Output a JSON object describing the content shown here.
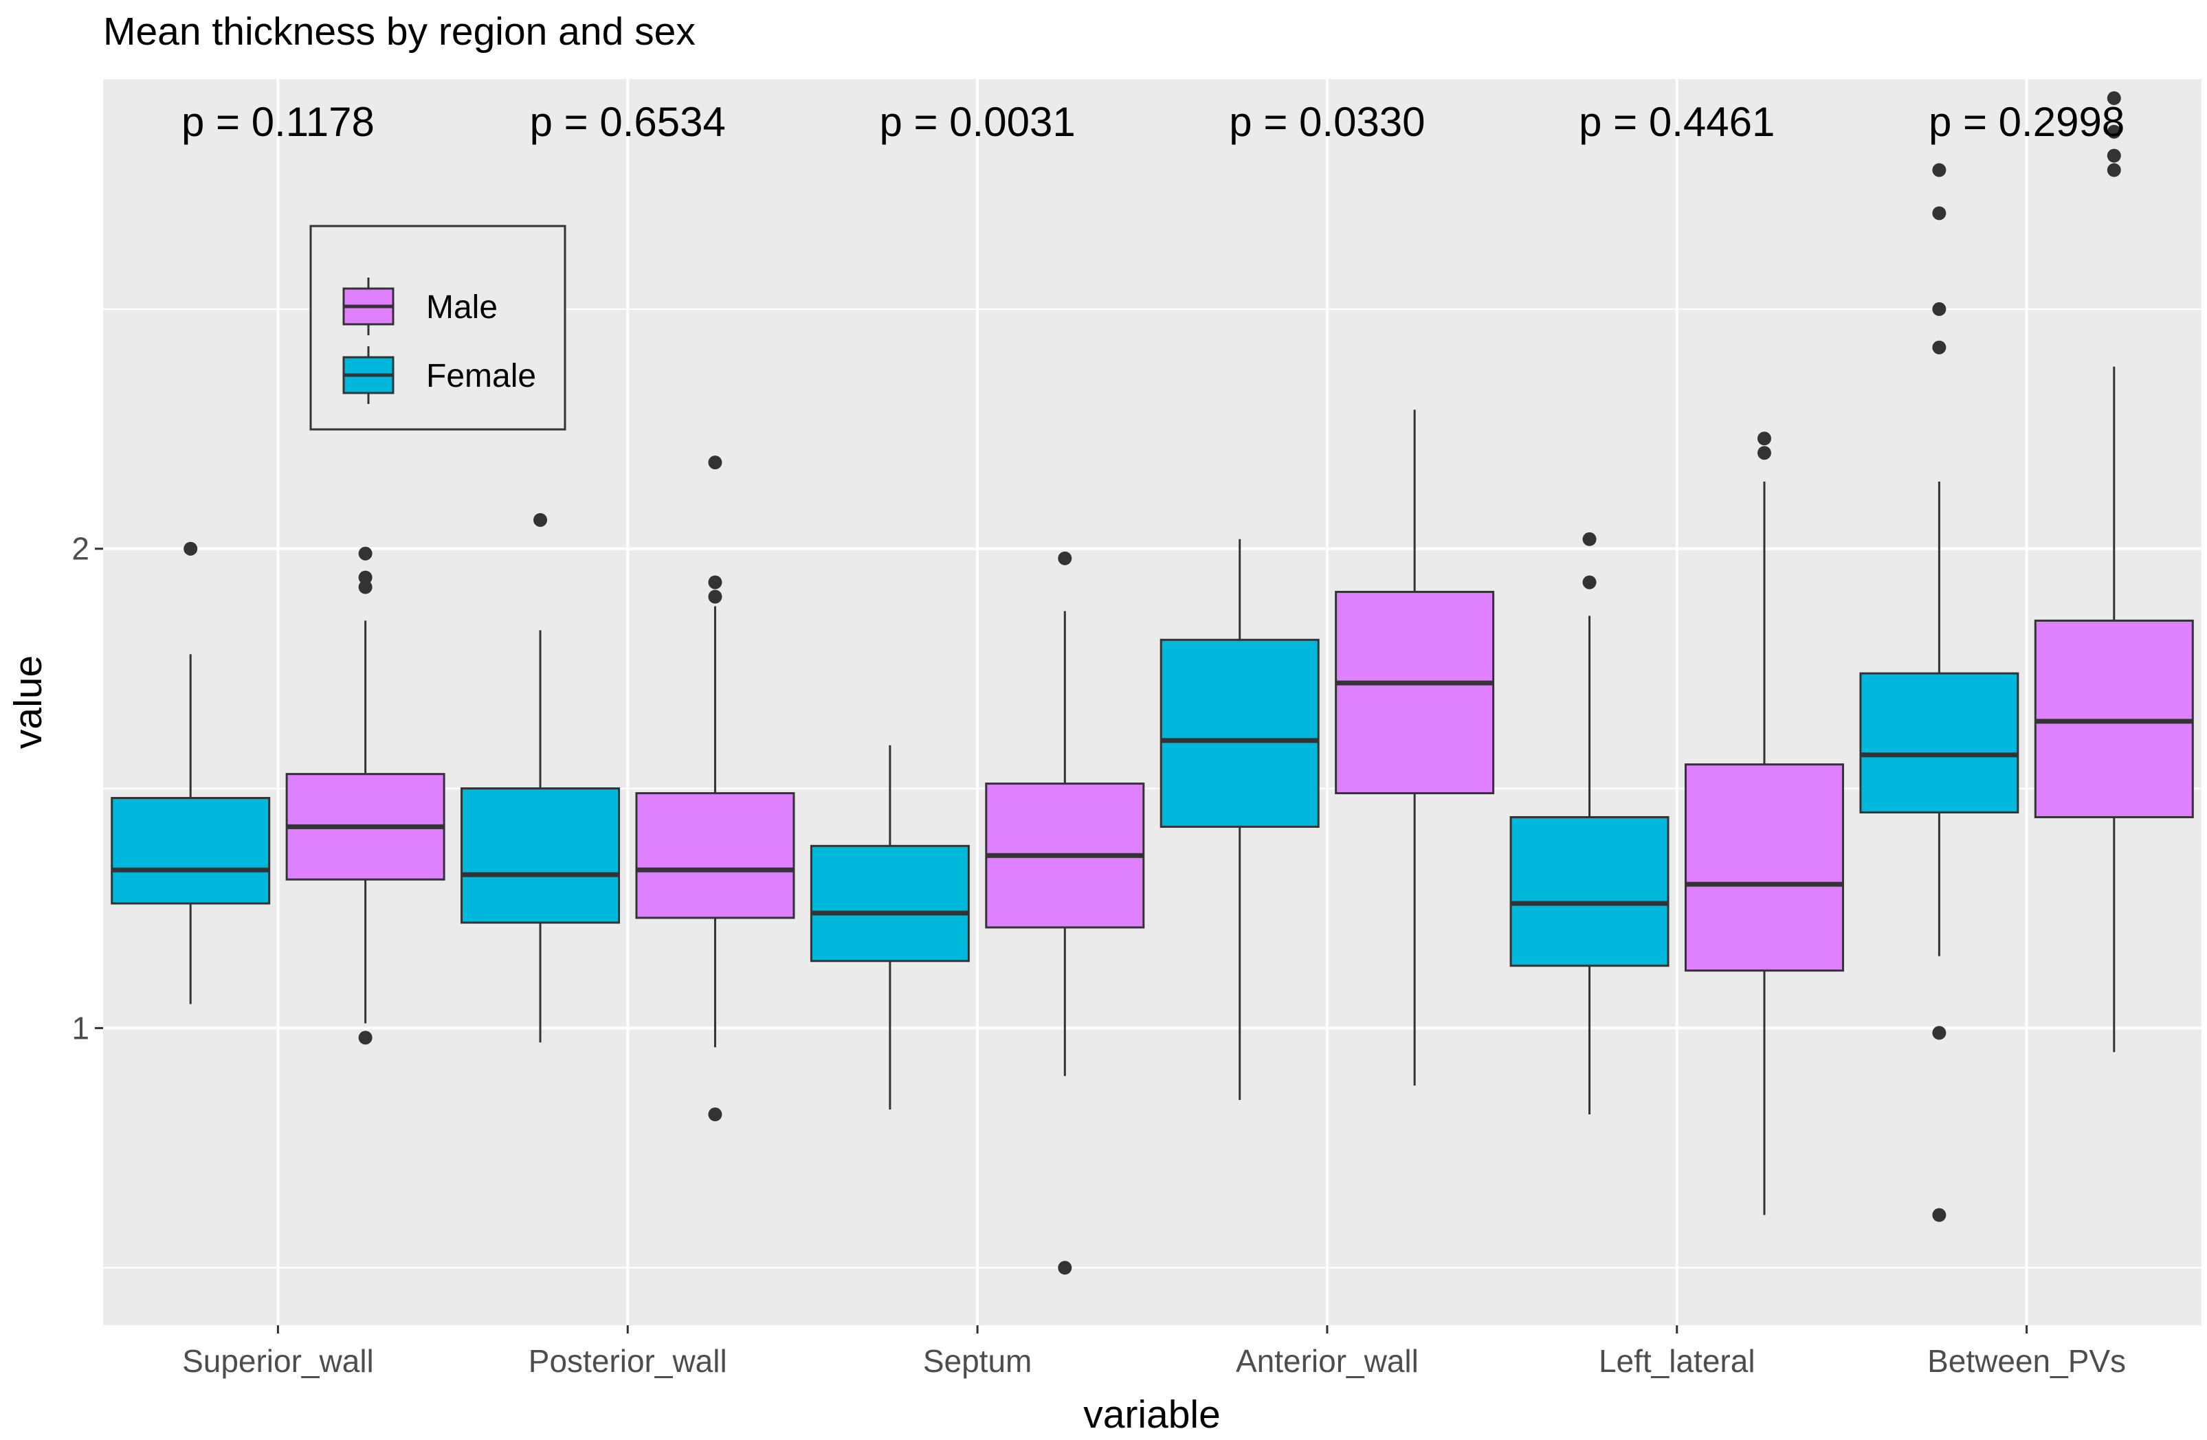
{
  "chart_data": {
    "type": "boxplot",
    "title": "Mean thickness by region and sex",
    "xlabel": "variable",
    "ylabel": "value",
    "ylim": [
      0.38,
      2.98
    ],
    "y_ticks": [
      1,
      2
    ],
    "y_minor_gridlines": [
      0.5,
      1.5,
      2.5
    ],
    "categories": [
      "Superior_wall",
      "Posterior_wall",
      "Septum",
      "Anterior_wall",
      "Left_lateral",
      "Between_PVs"
    ],
    "p_values": [
      "p = 0.1178",
      "p = 0.6534",
      "p = 0.0031",
      "p = 0.0330",
      "p = 0.4461",
      "p = 0.2998"
    ],
    "legend": {
      "position": "top-left",
      "entries": [
        {
          "label": "Male",
          "color": "#df80ff"
        },
        {
          "label": "Female",
          "color": "#00b8dc"
        }
      ]
    },
    "series": [
      {
        "name": "Female",
        "color": "#00b8dc",
        "boxes": [
          {
            "min": 1.05,
            "q1": 1.26,
            "median": 1.33,
            "q3": 1.48,
            "max": 1.78,
            "outliers": [
              2.0
            ]
          },
          {
            "min": 0.97,
            "q1": 1.22,
            "median": 1.32,
            "q3": 1.5,
            "max": 1.83,
            "outliers": [
              2.06
            ]
          },
          {
            "min": 0.83,
            "q1": 1.14,
            "median": 1.24,
            "q3": 1.38,
            "max": 1.59,
            "outliers": []
          },
          {
            "min": 0.85,
            "q1": 1.42,
            "median": 1.6,
            "q3": 1.81,
            "max": 2.02,
            "outliers": []
          },
          {
            "min": 0.82,
            "q1": 1.13,
            "median": 1.26,
            "q3": 1.44,
            "max": 1.86,
            "outliers": [
              2.02,
              1.93
            ]
          },
          {
            "min": 1.15,
            "q1": 1.45,
            "median": 1.57,
            "q3": 1.74,
            "max": 2.14,
            "outliers": [
              2.79,
              2.7,
              2.5,
              2.42,
              0.99,
              0.61
            ]
          }
        ]
      },
      {
        "name": "Male",
        "color": "#df80ff",
        "boxes": [
          {
            "min": 1.01,
            "q1": 1.31,
            "median": 1.42,
            "q3": 1.53,
            "max": 1.85,
            "outliers": [
              1.99,
              1.94,
              1.92,
              0.98
            ]
          },
          {
            "min": 0.96,
            "q1": 1.23,
            "median": 1.33,
            "q3": 1.49,
            "max": 1.88,
            "outliers": [
              2.18,
              1.93,
              1.9,
              0.82
            ]
          },
          {
            "min": 0.9,
            "q1": 1.21,
            "median": 1.36,
            "q3": 1.51,
            "max": 1.87,
            "outliers": [
              1.98,
              0.5
            ]
          },
          {
            "min": 0.88,
            "q1": 1.49,
            "median": 1.72,
            "q3": 1.91,
            "max": 2.29,
            "outliers": []
          },
          {
            "min": 0.61,
            "q1": 1.12,
            "median": 1.3,
            "q3": 1.55,
            "max": 2.14,
            "outliers": [
              2.23,
              2.2
            ]
          },
          {
            "min": 0.95,
            "q1": 1.44,
            "median": 1.64,
            "q3": 1.85,
            "max": 2.38,
            "outliers": [
              2.94,
              2.87,
              2.82,
              2.79
            ]
          }
        ]
      }
    ]
  }
}
